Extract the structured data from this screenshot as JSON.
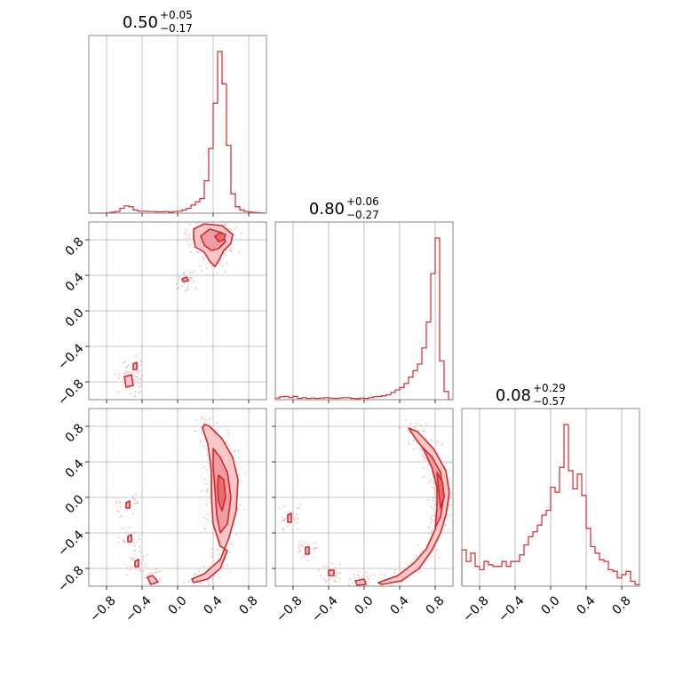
{
  "colors": {
    "accent": "#d62728",
    "light": "#f6c8ca",
    "scatter": "#f2b6b8",
    "grid": "#b0b0b0"
  },
  "chart_data": {
    "type": "corner",
    "range": [
      -1,
      1
    ],
    "ticks": [
      -0.8,
      -0.4,
      0.0,
      0.4,
      0.8
    ],
    "tick_labels": [
      "−0.8",
      "−0.4",
      "0.0",
      "0.4",
      "0.8"
    ],
    "grid": true,
    "titles": [
      {
        "main": "0.50",
        "sup": "+0.05",
        "sub": "−0.17"
      },
      {
        "main": "0.80",
        "sup": "+0.06",
        "sub": "−0.27"
      },
      {
        "main": "0.08",
        "sup": "+0.29",
        "sub": "−0.57"
      }
    ],
    "hist": [
      {
        "bin_edges": [
          -1.0,
          -0.95,
          -0.9,
          -0.85,
          -0.8,
          -0.75,
          -0.7,
          -0.65,
          -0.6,
          -0.55,
          -0.5,
          -0.45,
          -0.4,
          -0.35,
          -0.3,
          -0.25,
          -0.2,
          -0.15,
          -0.1,
          -0.05,
          0.0,
          0.05,
          0.1,
          0.15,
          0.2,
          0.25,
          0.3,
          0.35,
          0.4,
          0.45,
          0.5,
          0.55,
          0.6,
          0.65,
          0.7,
          0.75,
          0.8,
          0.85,
          0.9,
          0.95,
          1.0
        ],
        "counts": [
          0,
          0,
          0,
          0,
          0.002,
          0.006,
          0.01,
          0.03,
          0.045,
          0.04,
          0.02,
          0.012,
          0.012,
          0.01,
          0.01,
          0.008,
          0.008,
          0.01,
          0.006,
          0.01,
          0.012,
          0.02,
          0.03,
          0.05,
          0.07,
          0.09,
          0.2,
          0.4,
          0.68,
          1.0,
          0.8,
          0.42,
          0.12,
          0.04,
          0.02,
          0.01,
          0.006,
          0.004,
          0.002,
          0
        ]
      },
      {
        "bin_edges": [
          -1.0,
          -0.95,
          -0.9,
          -0.85,
          -0.8,
          -0.75,
          -0.7,
          -0.65,
          -0.6,
          -0.55,
          -0.5,
          -0.45,
          -0.4,
          -0.35,
          -0.3,
          -0.25,
          -0.2,
          -0.15,
          -0.1,
          -0.05,
          0.0,
          0.05,
          0.1,
          0.15,
          0.2,
          0.25,
          0.3,
          0.35,
          0.4,
          0.45,
          0.5,
          0.55,
          0.6,
          0.65,
          0.7,
          0.75,
          0.8,
          0.85,
          0.9,
          0.95,
          1.0
        ],
        "counts": [
          0.01,
          0.018,
          0.02,
          0.012,
          0.02,
          0.008,
          0.012,
          0.008,
          0.01,
          0.008,
          0.01,
          0.012,
          0.01,
          0.008,
          0.01,
          0.012,
          0.012,
          0.008,
          0.006,
          0.01,
          0.008,
          0.012,
          0.018,
          0.02,
          0.024,
          0.03,
          0.045,
          0.06,
          0.075,
          0.1,
          0.14,
          0.18,
          0.22,
          0.32,
          0.48,
          0.78,
          1.0,
          0.24,
          0.05,
          0
        ]
      },
      {
        "bin_edges": [
          -1.0,
          -0.95,
          -0.9,
          -0.85,
          -0.8,
          -0.75,
          -0.7,
          -0.65,
          -0.6,
          -0.55,
          -0.5,
          -0.45,
          -0.4,
          -0.35,
          -0.3,
          -0.25,
          -0.2,
          -0.15,
          -0.1,
          -0.05,
          0.0,
          0.05,
          0.1,
          0.15,
          0.2,
          0.25,
          0.3,
          0.35,
          0.4,
          0.45,
          0.5,
          0.55,
          0.6,
          0.65,
          0.7,
          0.75,
          0.8,
          0.85,
          0.9,
          0.95,
          1.0
        ],
        "counts": [
          0.22,
          0.15,
          0.2,
          0.12,
          0.1,
          0.15,
          0.13,
          0.12,
          0.12,
          0.15,
          0.12,
          0.15,
          0.15,
          0.19,
          0.25,
          0.3,
          0.33,
          0.37,
          0.43,
          0.46,
          0.6,
          0.57,
          0.72,
          0.98,
          0.7,
          0.59,
          0.68,
          0.55,
          0.35,
          0.24,
          0.2,
          0.16,
          0.15,
          0.1,
          0.09,
          0.05,
          0.07,
          0.09,
          0.03,
          0.01
        ]
      }
    ],
    "pairs": [
      {
        "x_param": 0,
        "y_param": 1,
        "contours": [
          {
            "level": 1,
            "points": [
              [
                0.18,
                0.92
              ],
              [
                0.3,
                0.98
              ],
              [
                0.5,
                0.96
              ],
              [
                0.62,
                0.86
              ],
              [
                0.6,
                0.76
              ],
              [
                0.52,
                0.68
              ],
              [
                0.46,
                0.56
              ],
              [
                0.42,
                0.5
              ],
              [
                0.36,
                0.56
              ],
              [
                0.3,
                0.66
              ],
              [
                0.2,
                0.72
              ],
              [
                0.18,
                0.82
              ]
            ]
          },
          {
            "level": 2,
            "points": [
              [
                0.26,
                0.84
              ],
              [
                0.36,
                0.92
              ],
              [
                0.5,
                0.88
              ],
              [
                0.54,
                0.78
              ],
              [
                0.46,
                0.7
              ],
              [
                0.38,
                0.68
              ],
              [
                0.3,
                0.74
              ]
            ]
          },
          {
            "level": 3,
            "points": [
              [
                0.42,
                0.84
              ],
              [
                0.48,
                0.88
              ],
              [
                0.54,
                0.86
              ],
              [
                0.52,
                0.8
              ],
              [
                0.46,
                0.78
              ]
            ]
          },
          {
            "level": 1,
            "points": [
              [
                0.05,
                0.36
              ],
              [
                0.1,
                0.38
              ],
              [
                0.12,
                0.34
              ],
              [
                0.06,
                0.33
              ]
            ]
          },
          {
            "level": 1,
            "points": [
              [
                -0.6,
                -0.74
              ],
              [
                -0.52,
                -0.72
              ],
              [
                -0.5,
                -0.84
              ],
              [
                -0.58,
                -0.86
              ]
            ]
          },
          {
            "level": 1,
            "points": [
              [
                -0.5,
                -0.6
              ],
              [
                -0.46,
                -0.58
              ],
              [
                -0.46,
                -0.66
              ],
              [
                -0.5,
                -0.66
              ]
            ]
          }
        ]
      },
      {
        "x_param": 0,
        "y_param": 2,
        "contours": [
          {
            "level": 1,
            "points": [
              [
                0.3,
                0.82
              ],
              [
                0.36,
                0.8
              ],
              [
                0.5,
                0.66
              ],
              [
                0.62,
                0.45
              ],
              [
                0.68,
                0.2
              ],
              [
                0.66,
                -0.15
              ],
              [
                0.58,
                -0.45
              ],
              [
                0.48,
                -0.7
              ],
              [
                0.3,
                -0.86
              ],
              [
                0.16,
                -0.92
              ],
              [
                0.18,
                -0.96
              ],
              [
                0.34,
                -0.92
              ],
              [
                0.48,
                -0.8
              ],
              [
                0.56,
                -0.6
              ],
              [
                0.48,
                -0.55
              ],
              [
                0.4,
                -0.3
              ],
              [
                0.38,
                0.0
              ],
              [
                0.38,
                0.3
              ],
              [
                0.34,
                0.6
              ],
              [
                0.28,
                0.78
              ]
            ]
          },
          {
            "level": 2,
            "points": [
              [
                0.4,
                0.55
              ],
              [
                0.48,
                0.45
              ],
              [
                0.56,
                0.28
              ],
              [
                0.6,
                0.0
              ],
              [
                0.56,
                -0.3
              ],
              [
                0.48,
                -0.4
              ],
              [
                0.44,
                -0.2
              ],
              [
                0.42,
                0.1
              ],
              [
                0.4,
                0.35
              ]
            ]
          },
          {
            "level": 3,
            "points": [
              [
                0.46,
                0.25
              ],
              [
                0.52,
                0.2
              ],
              [
                0.54,
                0.0
              ],
              [
                0.5,
                -0.15
              ],
              [
                0.46,
                -0.05
              ],
              [
                0.45,
                0.12
              ]
            ]
          },
          {
            "level": 1,
            "points": [
              [
                -0.58,
                -0.06
              ],
              [
                -0.54,
                -0.04
              ],
              [
                -0.54,
                -0.12
              ],
              [
                -0.58,
                -0.12
              ]
            ]
          },
          {
            "level": 1,
            "points": [
              [
                -0.56,
                -0.44
              ],
              [
                -0.52,
                -0.42
              ],
              [
                -0.52,
                -0.5
              ],
              [
                -0.56,
                -0.5
              ]
            ]
          },
          {
            "level": 1,
            "points": [
              [
                -0.48,
                -0.72
              ],
              [
                -0.44,
                -0.7
              ],
              [
                -0.44,
                -0.78
              ],
              [
                -0.48,
                -0.78
              ]
            ]
          },
          {
            "level": 1,
            "points": [
              [
                -0.34,
                -0.9
              ],
              [
                -0.28,
                -0.88
              ],
              [
                -0.22,
                -0.95
              ],
              [
                -0.3,
                -0.98
              ]
            ]
          }
        ]
      },
      {
        "x_param": 1,
        "y_param": 2,
        "contours": [
          {
            "level": 1,
            "points": [
              [
                0.5,
                0.78
              ],
              [
                0.6,
                0.74
              ],
              [
                0.78,
                0.55
              ],
              [
                0.92,
                0.3
              ],
              [
                0.96,
                0.05
              ],
              [
                0.92,
                -0.2
              ],
              [
                0.86,
                -0.4
              ],
              [
                0.76,
                -0.6
              ],
              [
                0.62,
                -0.8
              ],
              [
                0.42,
                -0.94
              ],
              [
                0.2,
                -0.98
              ],
              [
                0.16,
                -0.96
              ],
              [
                0.38,
                -0.88
              ],
              [
                0.56,
                -0.74
              ],
              [
                0.7,
                -0.58
              ],
              [
                0.8,
                -0.36
              ],
              [
                0.86,
                -0.1
              ],
              [
                0.84,
                0.2
              ],
              [
                0.74,
                0.45
              ],
              [
                0.58,
                0.66
              ]
            ]
          },
          {
            "level": 2,
            "points": [
              [
                0.66,
                0.56
              ],
              [
                0.76,
                0.46
              ],
              [
                0.86,
                0.28
              ],
              [
                0.9,
                0.02
              ],
              [
                0.86,
                -0.22
              ],
              [
                0.8,
                -0.34
              ],
              [
                0.82,
                -0.12
              ],
              [
                0.82,
                0.12
              ],
              [
                0.76,
                0.34
              ]
            ]
          },
          {
            "level": 3,
            "points": [
              [
                0.82,
                0.28
              ],
              [
                0.88,
                0.18
              ],
              [
                0.9,
                0.0
              ],
              [
                0.86,
                -0.12
              ],
              [
                0.84,
                0.06
              ]
            ]
          },
          {
            "level": 1,
            "points": [
              [
                -0.86,
                -0.2
              ],
              [
                -0.82,
                -0.18
              ],
              [
                -0.82,
                -0.28
              ],
              [
                -0.86,
                -0.28
              ]
            ]
          },
          {
            "level": 1,
            "points": [
              [
                -0.66,
                -0.56
              ],
              [
                -0.62,
                -0.56
              ],
              [
                -0.62,
                -0.64
              ],
              [
                -0.66,
                -0.64
              ]
            ]
          },
          {
            "level": 1,
            "points": [
              [
                -0.4,
                -0.82
              ],
              [
                -0.34,
                -0.82
              ],
              [
                -0.34,
                -0.88
              ],
              [
                -0.4,
                -0.88
              ]
            ]
          },
          {
            "level": 1,
            "points": [
              [
                -0.1,
                -0.94
              ],
              [
                0.0,
                -0.92
              ],
              [
                0.02,
                -0.98
              ],
              [
                -0.08,
                -0.99
              ]
            ]
          }
        ]
      }
    ]
  }
}
